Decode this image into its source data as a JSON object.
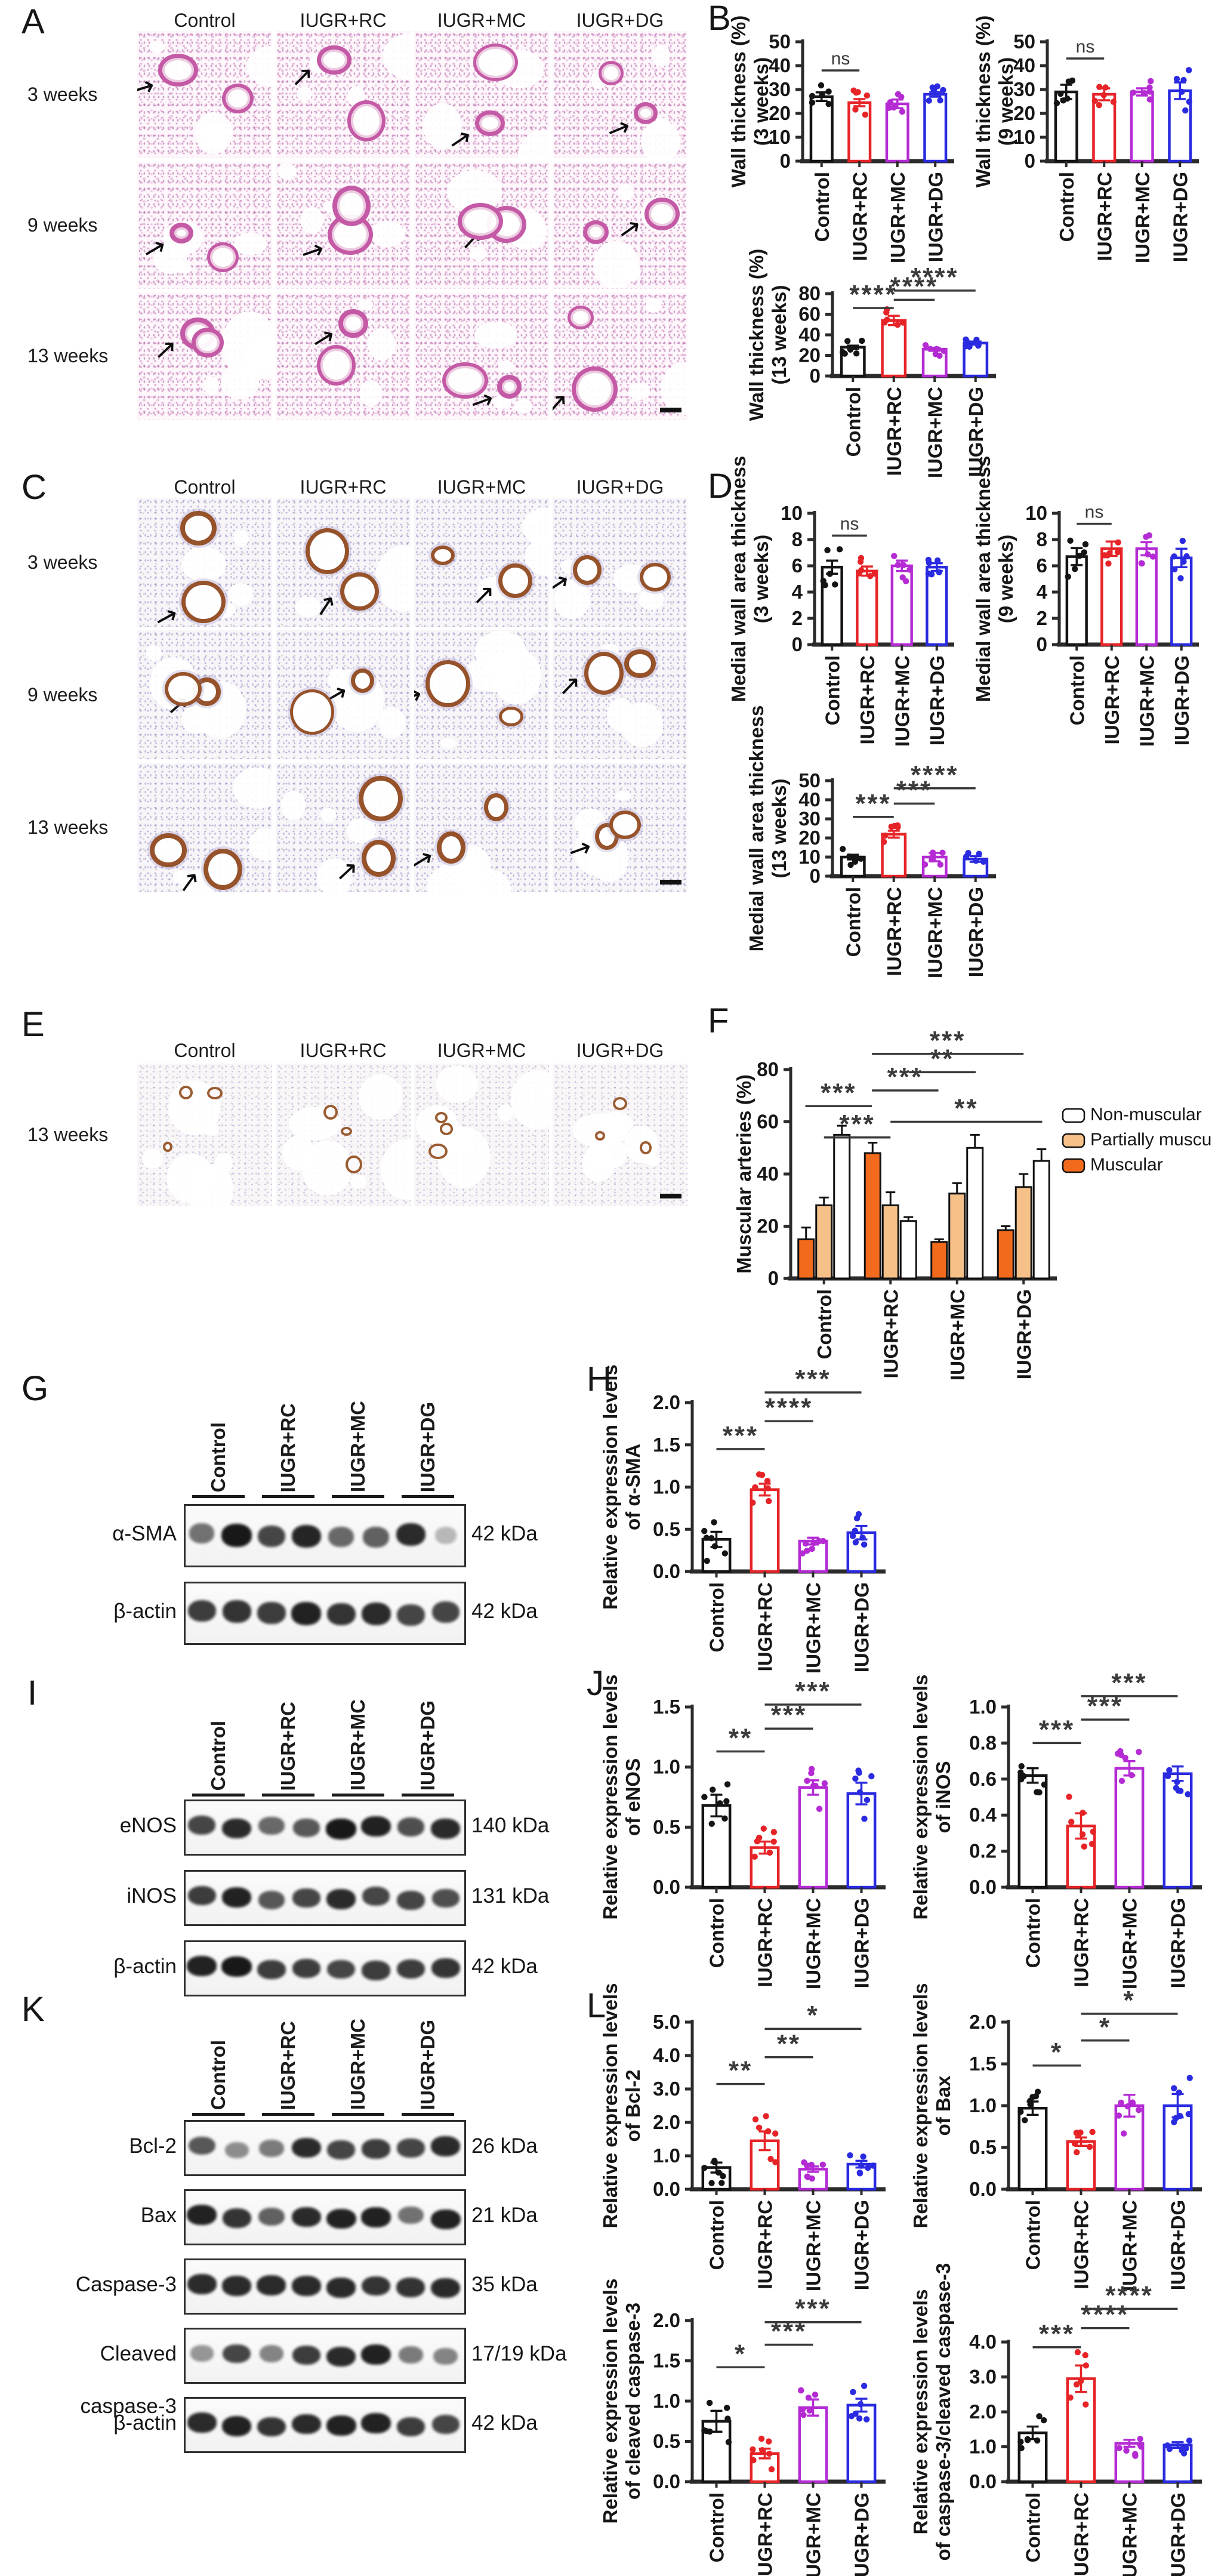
{
  "figure": {
    "groups": [
      "Control",
      "IUGR+RC",
      "IUGR+MC",
      "IUGR+DG"
    ],
    "group_colors": [
      "#141414",
      "#e62428",
      "#b42bd4",
      "#2a2ae0"
    ],
    "panels": {
      "A": {
        "letter": "A",
        "type": "histology",
        "stain": "he",
        "col_headers": [
          "Control",
          "IUGR+RC",
          "IUGR+MC",
          "IUGR+DG"
        ],
        "row_labels": [
          "3 weeks",
          "9 weeks",
          "13 weeks"
        ],
        "has_scale_bar": true
      },
      "B": {
        "letter": "B",
        "type": "charts",
        "charts": [
          "B1",
          "B2",
          "B3"
        ]
      },
      "C": {
        "letter": "C",
        "type": "histology",
        "stain": "ihc",
        "col_headers": [
          "Control",
          "IUGR+RC",
          "IUGR+MC",
          "IUGR+DG"
        ],
        "row_labels": [
          "3 weeks",
          "9 weeks",
          "13 weeks"
        ],
        "has_scale_bar": true
      },
      "D": {
        "letter": "D",
        "type": "charts",
        "charts": [
          "D1",
          "D2",
          "D3"
        ]
      },
      "E": {
        "letter": "E",
        "type": "histology",
        "stain": "ihcl",
        "col_headers": [
          "Control",
          "IUGR+RC",
          "IUGR+MC",
          "IUGR+DG"
        ],
        "row_labels": [
          "13 weeks"
        ],
        "has_scale_bar": true
      },
      "F": {
        "letter": "F",
        "type": "charts",
        "charts": [
          "F"
        ]
      },
      "G": {
        "letter": "G",
        "type": "western_blot",
        "lanes": [
          "Control",
          "IUGR+RC",
          "IUGR+MC",
          "IUGR+DG"
        ],
        "rows": [
          {
            "label": "α-SMA",
            "kda": "42 kDa",
            "bands": [
              0.45,
              0.95,
              0.7,
              0.88,
              0.5,
              0.55,
              0.85,
              0.06
            ]
          },
          {
            "label": "β-actin",
            "kda": "42 kDa",
            "bands": [
              0.75,
              0.8,
              0.75,
              0.9,
              0.8,
              0.85,
              0.7,
              0.7
            ]
          }
        ]
      },
      "H": {
        "letter": "H",
        "type": "charts",
        "charts": [
          "H"
        ]
      },
      "I": {
        "letter": "I",
        "type": "western_blot",
        "lanes": [
          "Control",
          "IUGR+RC",
          "IUGR+MC",
          "IUGR+DG"
        ],
        "rows": [
          {
            "label": "eNOS",
            "kda": "140 kDa",
            "bands": [
              0.7,
              0.85,
              0.5,
              0.6,
              0.95,
              0.9,
              0.65,
              0.85
            ]
          },
          {
            "label": "iNOS",
            "kda": "131 kDa",
            "bands": [
              0.75,
              0.9,
              0.6,
              0.7,
              0.85,
              0.7,
              0.7,
              0.65
            ]
          },
          {
            "label": "β-actin",
            "kda": "42 kDa",
            "bands": [
              0.9,
              0.95,
              0.75,
              0.75,
              0.7,
              0.75,
              0.75,
              0.8
            ]
          }
        ]
      },
      "J": {
        "letter": "J",
        "type": "charts",
        "charts": [
          "J1",
          "J2"
        ]
      },
      "K": {
        "letter": "K",
        "type": "western_blot",
        "lanes": [
          "Control",
          "IUGR+RC",
          "IUGR+MC",
          "IUGR+DG"
        ],
        "rows": [
          {
            "label": "Bcl-2",
            "kda": "26 kDa",
            "bands": [
              0.6,
              0.3,
              0.4,
              0.85,
              0.7,
              0.75,
              0.7,
              0.85
            ]
          },
          {
            "label": "Bax",
            "kda": "21 kDa",
            "bands": [
              0.9,
              0.8,
              0.55,
              0.85,
              0.9,
              0.9,
              0.45,
              0.9
            ]
          },
          {
            "label": "Caspase-3",
            "kda": "35 kDa",
            "bands": [
              0.85,
              0.85,
              0.85,
              0.85,
              0.85,
              0.8,
              0.8,
              0.85
            ]
          },
          {
            "label": "Cleaved caspase-3",
            "kda": "17/19 kDa",
            "bands": [
              0.25,
              0.7,
              0.35,
              0.75,
              0.85,
              0.9,
              0.4,
              0.35
            ]
          },
          {
            "label": "β-actin",
            "kda": "42 kDa",
            "bands": [
              0.85,
              0.9,
              0.8,
              0.85,
              0.9,
              0.9,
              0.75,
              0.7
            ]
          }
        ]
      },
      "L": {
        "letter": "L",
        "type": "charts",
        "charts": [
          "L1",
          "L2",
          "L3",
          "L4"
        ]
      }
    }
  },
  "chart_data": [
    {
      "id": "B1",
      "panel": "B",
      "type": "bar",
      "title": "",
      "ylabel_lines": [
        "Wall thickness (%)",
        "(3 weeks)"
      ],
      "categories": [
        "Control",
        "IUGR+RC",
        "IUGR+MC",
        "IUGR+DG"
      ],
      "values": [
        27,
        24.5,
        24,
        28
      ],
      "errors": [
        1.8,
        1.5,
        1.8,
        1.0
      ],
      "ylim": [
        0,
        50
      ],
      "yticks": [
        0,
        10,
        20,
        30,
        40,
        50
      ],
      "tick_decimals": 0,
      "points_per_bar": 6,
      "sig": [
        {
          "from": 0,
          "to": 1,
          "label": "ns",
          "y": 38
        }
      ]
    },
    {
      "id": "B2",
      "panel": "B",
      "type": "bar",
      "title": "",
      "ylabel_lines": [
        "Wall thickness (%)",
        "(9 weeks)"
      ],
      "categories": [
        "Control",
        "IUGR+RC",
        "IUGR+MC",
        "IUGR+DG"
      ],
      "values": [
        29,
        28,
        29,
        29.5
      ],
      "errors": [
        3,
        2.5,
        1.5,
        3.5
      ],
      "ylim": [
        0,
        50
      ],
      "yticks": [
        0,
        10,
        20,
        30,
        40,
        50
      ],
      "tick_decimals": 0,
      "points_per_bar": 6,
      "sig": [
        {
          "from": 0,
          "to": 1,
          "label": "ns",
          "y": 43
        }
      ]
    },
    {
      "id": "B3",
      "panel": "B",
      "type": "bar",
      "title": "",
      "ylabel_lines": [
        "Wall thickness (%)",
        "(13 weeks)"
      ],
      "categories": [
        "Control",
        "IUGR+RC",
        "IUGR+MC",
        "IUGR+DG"
      ],
      "values": [
        28,
        54,
        26,
        32
      ],
      "errors": [
        1.5,
        4.5,
        1.5,
        1.5
      ],
      "ylim": [
        0,
        80
      ],
      "yticks": [
        0,
        20,
        40,
        60,
        80
      ],
      "tick_decimals": 0,
      "points_per_bar": 6,
      "sig": [
        {
          "from": 0,
          "to": 1,
          "label": "****",
          "y": 66
        },
        {
          "from": 1,
          "to": 2,
          "label": "****",
          "y": 74
        },
        {
          "from": 1,
          "to": 3,
          "label": "****",
          "y": 83
        }
      ]
    },
    {
      "id": "D1",
      "panel": "D",
      "type": "bar",
      "title": "",
      "ylabel_lines": [
        "Medial wall area thickness",
        "(3 weeks)"
      ],
      "categories": [
        "Control",
        "IUGR+RC",
        "IUGR+MC",
        "IUGR+DG"
      ],
      "values": [
        5.9,
        5.6,
        6.0,
        5.9
      ],
      "errors": [
        0.5,
        0.35,
        0.4,
        0.3
      ],
      "ylim": [
        0,
        10
      ],
      "yticks": [
        0,
        2,
        4,
        6,
        8,
        10
      ],
      "tick_decimals": 0,
      "points_per_bar": 6,
      "sig": [
        {
          "from": 0,
          "to": 1,
          "label": "ns",
          "y": 8.3
        }
      ]
    },
    {
      "id": "D2",
      "panel": "D",
      "type": "bar",
      "title": "",
      "ylabel_lines": [
        "Medial wall area thickness",
        "(9 weeks)"
      ],
      "categories": [
        "Control",
        "IUGR+RC",
        "IUGR+MC",
        "IUGR+DG"
      ],
      "values": [
        6.7,
        7.3,
        7.3,
        6.6
      ],
      "errors": [
        0.65,
        0.55,
        0.5,
        0.7
      ],
      "ylim": [
        0,
        10
      ],
      "yticks": [
        0,
        2,
        4,
        6,
        8,
        10
      ],
      "tick_decimals": 0,
      "points_per_bar": 6,
      "sig": [
        {
          "from": 0,
          "to": 1,
          "label": "ns",
          "y": 9.2
        }
      ]
    },
    {
      "id": "D3",
      "panel": "D",
      "type": "bar",
      "title": "",
      "ylabel_lines": [
        "Medial wall area thickness",
        "(13 weeks)"
      ],
      "categories": [
        "Control",
        "IUGR+RC",
        "IUGR+MC",
        "IUGR+DG"
      ],
      "values": [
        10,
        22,
        10,
        9
      ],
      "errors": [
        1.2,
        1.8,
        2.2,
        1.5
      ],
      "ylim": [
        0,
        50
      ],
      "yticks": [
        0,
        10,
        20,
        30,
        40,
        50
      ],
      "tick_decimals": 0,
      "points_per_bar": 6,
      "sig": [
        {
          "from": 0,
          "to": 1,
          "label": "***",
          "y": 31
        },
        {
          "from": 1,
          "to": 2,
          "label": "***",
          "y": 38
        },
        {
          "from": 1,
          "to": 3,
          "label": "****",
          "y": 46
        }
      ]
    },
    {
      "id": "F",
      "panel": "F",
      "type": "grouped_bar",
      "title": "",
      "ylabel_lines": [
        "Muscular arteries (%)"
      ],
      "categories": [
        "Control",
        "IUGR+RC",
        "IUGR+MC",
        "IUGR+DG"
      ],
      "series": [
        {
          "name": "Muscular",
          "color": "#f26a1c",
          "values": [
            15,
            48,
            14,
            18.5
          ],
          "errors": [
            4.5,
            4,
            1,
            1.5
          ]
        },
        {
          "name": "Partially muscular",
          "color": "#f6c089",
          "values": [
            28,
            28,
            32.5,
            35
          ],
          "errors": [
            3,
            5,
            4,
            5
          ]
        },
        {
          "name": "Non-muscular",
          "color": "#ffffff",
          "values": [
            55,
            22,
            50,
            45
          ],
          "errors": [
            3.5,
            1.5,
            5,
            4.5
          ]
        }
      ],
      "legend_order": [
        "Non-muscular",
        "Partially muscular",
        "Muscular"
      ],
      "legend_position": "right",
      "ylim": [
        0,
        80
      ],
      "yticks": [
        0,
        20,
        40,
        60,
        80
      ],
      "tick_decimals": 0,
      "sig": [
        {
          "x1": 0.72,
          "x2": 3.0,
          "label": "***",
          "y": 86
        },
        {
          "x1": 1.28,
          "x2": 2.28,
          "label": "**",
          "y": 79
        },
        {
          "x1": 0.72,
          "x2": 1.72,
          "label": "***",
          "y": 72
        },
        {
          "x1": -0.28,
          "x2": 0.72,
          "label": "***",
          "y": 66
        },
        {
          "x1": 1.0,
          "x2": 3.28,
          "label": "**",
          "y": 60
        },
        {
          "x1": 0.0,
          "x2": 1.0,
          "label": "***",
          "y": 54
        }
      ]
    },
    {
      "id": "H",
      "panel": "H",
      "type": "bar",
      "title": "",
      "ylabel_lines": [
        "Relative expression levels",
        "of α-SMA"
      ],
      "categories": [
        "Control",
        "IUGR+RC",
        "IUGR+MC",
        "IUGR+DG"
      ],
      "values": [
        0.38,
        0.97,
        0.36,
        0.46
      ],
      "errors": [
        0.09,
        0.07,
        0.04,
        0.08
      ],
      "ylim": [
        0,
        2
      ],
      "yticks": [
        0,
        0.5,
        1,
        1.5,
        2
      ],
      "tick_decimals": 1,
      "points_per_bar": 7,
      "sig": [
        {
          "from": 0,
          "to": 1,
          "label": "***",
          "y": 1.45
        },
        {
          "from": 1,
          "to": 2,
          "label": "****",
          "y": 1.78
        },
        {
          "from": 1,
          "to": 3,
          "label": "***",
          "y": 2.12
        }
      ]
    },
    {
      "id": "J1",
      "panel": "J",
      "type": "bar",
      "title": "",
      "ylabel_lines": [
        "Relative expression levels",
        "of eNOS"
      ],
      "categories": [
        "Control",
        "IUGR+RC",
        "IUGR+MC",
        "IUGR+DG"
      ],
      "values": [
        0.68,
        0.33,
        0.83,
        0.78
      ],
      "errors": [
        0.09,
        0.05,
        0.06,
        0.09
      ],
      "ylim": [
        0,
        1.5
      ],
      "yticks": [
        0,
        0.5,
        1,
        1.5
      ],
      "tick_decimals": 1,
      "points_per_bar": 7,
      "sig": [
        {
          "from": 0,
          "to": 1,
          "label": "**",
          "y": 1.13
        },
        {
          "from": 1,
          "to": 2,
          "label": "***",
          "y": 1.32
        },
        {
          "from": 1,
          "to": 3,
          "label": "***",
          "y": 1.52
        }
      ]
    },
    {
      "id": "J2",
      "panel": "J",
      "type": "bar",
      "title": "",
      "ylabel_lines": [
        "Relative expression levels",
        "of iNOS"
      ],
      "categories": [
        "Control",
        "IUGR+RC",
        "IUGR+MC",
        "IUGR+DG"
      ],
      "values": [
        0.62,
        0.34,
        0.66,
        0.63
      ],
      "errors": [
        0.04,
        0.07,
        0.04,
        0.04
      ],
      "ylim": [
        0,
        1
      ],
      "yticks": [
        0,
        0.2,
        0.4,
        0.6,
        0.8,
        1
      ],
      "tick_decimals": 1,
      "points_per_bar": 7,
      "sig": [
        {
          "from": 0,
          "to": 1,
          "label": "***",
          "y": 0.8
        },
        {
          "from": 1,
          "to": 2,
          "label": "***",
          "y": 0.93
        },
        {
          "from": 1,
          "to": 3,
          "label": "***",
          "y": 1.06
        }
      ]
    },
    {
      "id": "L1",
      "panel": "L",
      "type": "bar",
      "title": "",
      "ylabel_lines": [
        "Relative expression levels",
        "of Bcl-2"
      ],
      "categories": [
        "Control",
        "IUGR+RC",
        "IUGR+MC",
        "IUGR+DG"
      ],
      "values": [
        0.65,
        1.45,
        0.6,
        0.75
      ],
      "errors": [
        0.15,
        0.28,
        0.08,
        0.1
      ],
      "ylim": [
        0,
        5
      ],
      "yticks": [
        0,
        1,
        2,
        3,
        4,
        5
      ],
      "tick_decimals": 1,
      "points_per_bar": 7,
      "sig": [
        {
          "from": 0,
          "to": 1,
          "label": "**",
          "y": 3.15
        },
        {
          "from": 1,
          "to": 2,
          "label": "**",
          "y": 3.95
        },
        {
          "from": 1,
          "to": 3,
          "label": "*",
          "y": 4.8
        }
      ]
    },
    {
      "id": "L2",
      "panel": "L",
      "type": "bar",
      "title": "",
      "ylabel_lines": [
        "Relative expression levels",
        "of Bax"
      ],
      "categories": [
        "Control",
        "IUGR+RC",
        "IUGR+MC",
        "IUGR+DG"
      ],
      "values": [
        0.97,
        0.57,
        1.0,
        1.0
      ],
      "errors": [
        0.08,
        0.05,
        0.13,
        0.14
      ],
      "ylim": [
        0,
        2
      ],
      "yticks": [
        0,
        0.5,
        1,
        1.5,
        2
      ],
      "tick_decimals": 1,
      "points_per_bar": 7,
      "sig": [
        {
          "from": 0,
          "to": 1,
          "label": "*",
          "y": 1.48
        },
        {
          "from": 1,
          "to": 2,
          "label": "*",
          "y": 1.78
        },
        {
          "from": 1,
          "to": 3,
          "label": "*",
          "y": 2.1
        }
      ]
    },
    {
      "id": "L3",
      "panel": "L",
      "type": "bar",
      "title": "",
      "ylabel_lines": [
        "Relative expression levels",
        "of cleaved caspase-3"
      ],
      "categories": [
        "Control",
        "IUGR+RC",
        "IUGR+MC",
        "IUGR+DG"
      ],
      "values": [
        0.75,
        0.35,
        0.92,
        0.95
      ],
      "errors": [
        0.13,
        0.06,
        0.1,
        0.08
      ],
      "ylim": [
        0,
        2
      ],
      "yticks": [
        0,
        0.5,
        1,
        1.5,
        2
      ],
      "tick_decimals": 1,
      "points_per_bar": 7,
      "sig": [
        {
          "from": 0,
          "to": 1,
          "label": "*",
          "y": 1.42
        },
        {
          "from": 1,
          "to": 2,
          "label": "***",
          "y": 1.7
        },
        {
          "from": 1,
          "to": 3,
          "label": "***",
          "y": 1.98
        }
      ]
    },
    {
      "id": "L4",
      "panel": "L",
      "type": "bar",
      "title": "",
      "ylabel_lines": [
        "Relative expression levels",
        "of caspase-3/cleaved caspase-3"
      ],
      "categories": [
        "Control",
        "IUGR+RC",
        "IUGR+MC",
        "IUGR+DG"
      ],
      "values": [
        1.4,
        2.95,
        1.1,
        1.05
      ],
      "errors": [
        0.18,
        0.38,
        0.1,
        0.08
      ],
      "ylim": [
        0,
        4
      ],
      "yticks": [
        0,
        1,
        2,
        3,
        4
      ],
      "tick_decimals": 1,
      "points_per_bar": 7,
      "sig": [
        {
          "from": 0,
          "to": 1,
          "label": "***",
          "y": 3.85
        },
        {
          "from": 1,
          "to": 2,
          "label": "****",
          "y": 4.4
        },
        {
          "from": 1,
          "to": 3,
          "label": "****",
          "y": 4.95
        }
      ]
    }
  ]
}
